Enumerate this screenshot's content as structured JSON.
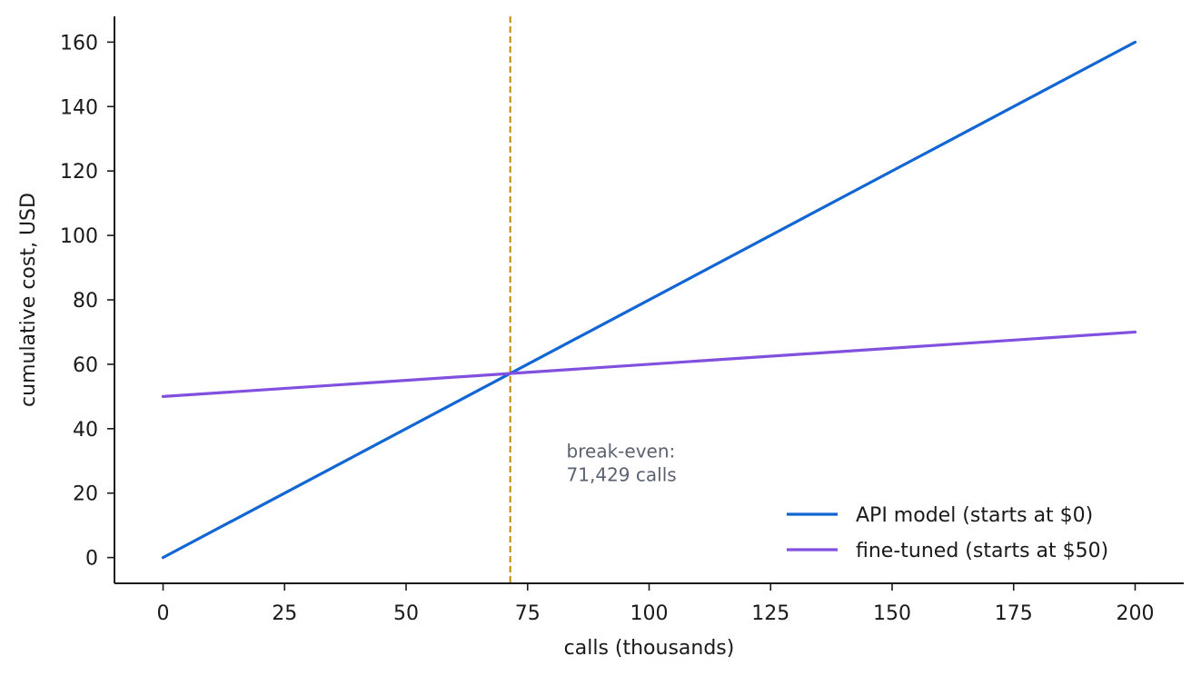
{
  "chart_data": {
    "type": "line",
    "title": "",
    "xlabel": "calls (thousands)",
    "ylabel": "cumulative cost, USD",
    "xlim": [
      -10,
      210
    ],
    "ylim": [
      -8,
      168
    ],
    "x_ticks": [
      0,
      25,
      50,
      75,
      100,
      125,
      150,
      175,
      200
    ],
    "y_ticks": [
      0,
      20,
      40,
      60,
      80,
      100,
      120,
      140,
      160
    ],
    "grid": false,
    "legend_position": "bottom-right",
    "series": [
      {
        "name": "API model (starts at $0)",
        "color": "#1166d4",
        "x": [
          0,
          200
        ],
        "y": [
          0,
          160
        ]
      },
      {
        "name": "fine-tuned (starts at $50)",
        "color": "#8250df",
        "x": [
          0,
          200
        ],
        "y": [
          50,
          70
        ]
      }
    ],
    "reference_line": {
      "orientation": "vertical",
      "x": 71.429,
      "color": "#c08a00",
      "style": "dashed"
    },
    "annotation": {
      "lines": [
        "break-even:",
        "71,429 calls"
      ],
      "x": 83,
      "y": 31,
      "color": "#5a6270"
    }
  }
}
